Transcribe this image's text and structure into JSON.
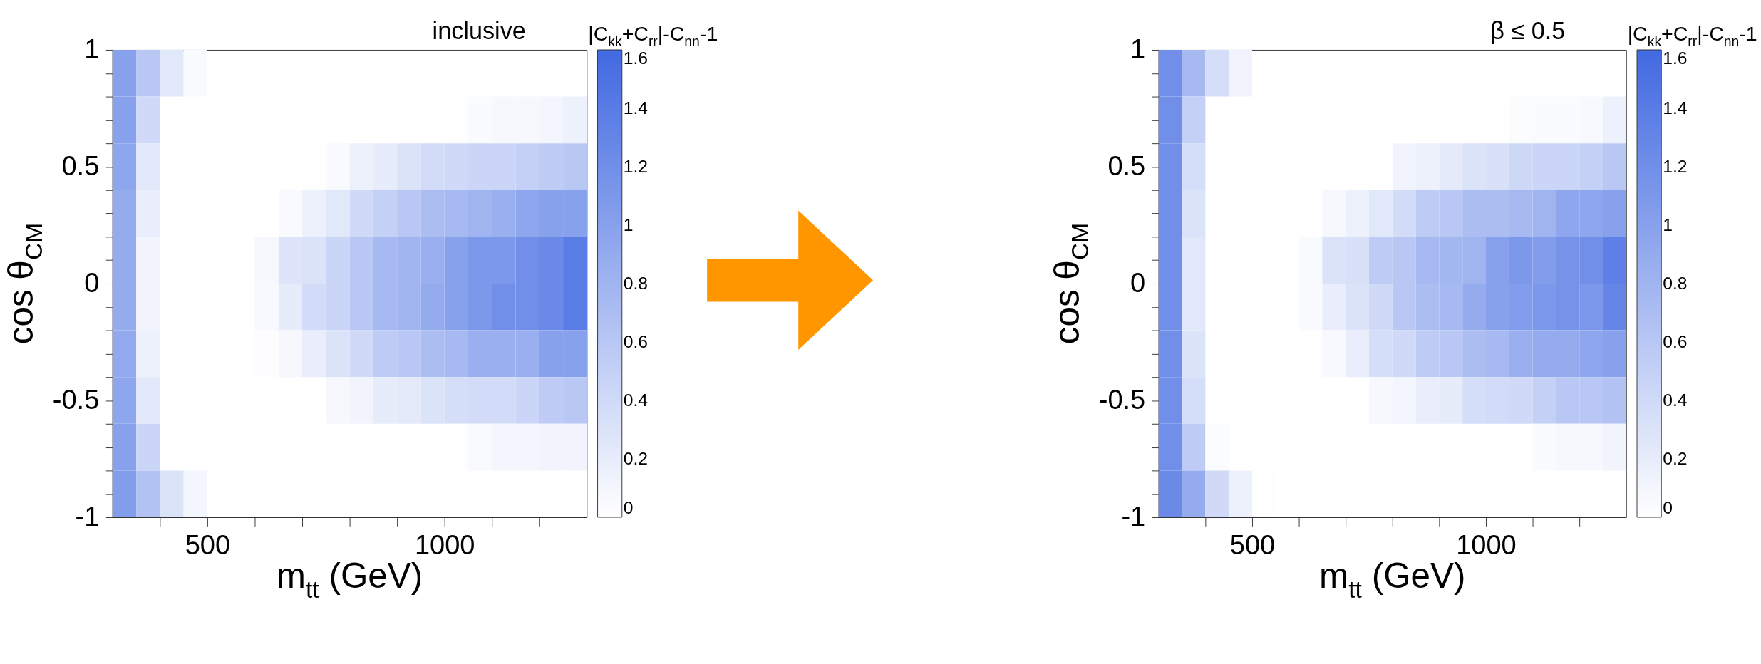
{
  "chart_data": [
    {
      "type": "heatmap",
      "title": "inclusive",
      "xlabel": "m$_{tt}$ (GeV)",
      "ylabel": "cos θ$_{CM}$",
      "clabel": "|C$_{kk}$+C$_{rr}$|-C$_{nn}$-1",
      "xlim": [
        300,
        1300
      ],
      "ylim": [
        -1,
        1
      ],
      "xticks": [
        {
          "value": 400,
          "label": null
        },
        500,
        {
          "value": 600,
          "label": null
        },
        {
          "value": 700,
          "label": null
        },
        {
          "value": 800,
          "label": null
        },
        {
          "value": 900,
          "label": null
        },
        1000,
        {
          "value": 1100,
          "label": null
        },
        {
          "value": 1200,
          "label": null
        }
      ],
      "yticks": [
        -1,
        {
          "value": -0.9,
          "label": null
        },
        {
          "value": -0.8,
          "label": null
        },
        {
          "value": -0.7,
          "label": null
        },
        {
          "value": -0.6,
          "label": null
        },
        -0.5,
        {
          "value": -0.4,
          "label": null
        },
        {
          "value": -0.3,
          "label": null
        },
        {
          "value": -0.2,
          "label": null
        },
        {
          "value": -0.1,
          "label": null
        },
        0,
        {
          "value": 0.1,
          "label": null
        },
        {
          "value": 0.2,
          "label": null
        },
        {
          "value": 0.3,
          "label": null
        },
        {
          "value": 0.4,
          "label": null
        },
        0.5,
        {
          "value": 0.6,
          "label": null
        },
        {
          "value": 0.7,
          "label": null
        },
        {
          "value": 0.8,
          "label": null
        },
        {
          "value": 0.9,
          "label": null
        },
        1
      ],
      "clim": [
        0,
        1.6
      ],
      "cticks": [
        0,
        0.2,
        0.4,
        0.6,
        0.8,
        1,
        1.2,
        1.4,
        1.6
      ],
      "colors": [
        "#ffffff",
        "#4169e1"
      ],
      "cells": [
        [
          1.0,
          0.6,
          0.25,
          0.05,
          null,
          null,
          null,
          null,
          null,
          null,
          null,
          null,
          null,
          null,
          null,
          null,
          null,
          null,
          null,
          null
        ],
        [
          1.0,
          0.4,
          null,
          null,
          null,
          null,
          null,
          null,
          null,
          null,
          null,
          null,
          null,
          null,
          0.01,
          0.04,
          0.08,
          0.08,
          0.1,
          0.15
        ],
        [
          0.95,
          0.25,
          null,
          null,
          null,
          null,
          null,
          null,
          0.01,
          0.05,
          0.15,
          0.2,
          0.3,
          0.38,
          0.4,
          0.45,
          0.45,
          0.5,
          0.55,
          0.6
        ],
        [
          0.9,
          0.18,
          null,
          null,
          null,
          null,
          null,
          0.05,
          0.15,
          0.25,
          0.4,
          0.5,
          0.6,
          0.7,
          0.75,
          0.8,
          0.85,
          0.95,
          1.0,
          1.0
        ],
        [
          0.9,
          0.12,
          null,
          null,
          null,
          null,
          0.08,
          0.28,
          0.3,
          0.45,
          0.6,
          0.75,
          0.8,
          0.85,
          1.0,
          1.1,
          1.1,
          1.2,
          1.25,
          1.4
        ],
        [
          0.9,
          0.12,
          null,
          null,
          null,
          null,
          0.06,
          0.2,
          0.38,
          0.45,
          0.6,
          0.75,
          0.8,
          0.9,
          1.0,
          1.1,
          1.2,
          1.2,
          1.25,
          1.4
        ],
        [
          0.92,
          0.15,
          null,
          null,
          null,
          null,
          0.02,
          0.08,
          0.18,
          0.3,
          0.4,
          0.55,
          0.6,
          0.7,
          0.75,
          0.85,
          0.85,
          0.85,
          1.0,
          1.0
        ],
        [
          0.95,
          0.25,
          null,
          null,
          null,
          null,
          null,
          null,
          null,
          0.08,
          0.12,
          0.2,
          0.22,
          0.3,
          0.35,
          0.38,
          0.38,
          0.45,
          0.55,
          0.6
        ],
        [
          1.0,
          0.45,
          null,
          null,
          null,
          null,
          null,
          null,
          null,
          null,
          null,
          null,
          null,
          null,
          0.01,
          0.05,
          0.1,
          0.1,
          0.12,
          0.12
        ],
        [
          1.05,
          0.65,
          0.3,
          0.1,
          null,
          null,
          null,
          null,
          null,
          null,
          null,
          null,
          null,
          null,
          null,
          null,
          null,
          null,
          null,
          null
        ]
      ]
    },
    {
      "type": "heatmap",
      "title": "β ≤ 0.5",
      "xlabel": "m$_{tt}$ (GeV)",
      "ylabel": "cos θ$_{CM}$",
      "clabel": "|C$_{kk}$+C$_{rr}$|-C$_{nn}$-1",
      "xlim": [
        300,
        1300
      ],
      "ylim": [
        -1,
        1
      ],
      "xticks": [
        {
          "value": 400,
          "label": null
        },
        500,
        {
          "value": 600,
          "label": null
        },
        {
          "value": 700,
          "label": null
        },
        {
          "value": 800,
          "label": null
        },
        {
          "value": 900,
          "label": null
        },
        1000,
        {
          "value": 1100,
          "label": null
        },
        {
          "value": 1200,
          "label": null
        }
      ],
      "yticks": [
        -1,
        {
          "value": -0.9,
          "label": null
        },
        {
          "value": -0.8,
          "label": null
        },
        {
          "value": -0.7,
          "label": null
        },
        {
          "value": -0.6,
          "label": null
        },
        -0.5,
        {
          "value": -0.4,
          "label": null
        },
        {
          "value": -0.3,
          "label": null
        },
        {
          "value": -0.2,
          "label": null
        },
        {
          "value": -0.1,
          "label": null
        },
        0,
        {
          "value": 0.1,
          "label": null
        },
        {
          "value": 0.2,
          "label": null
        },
        {
          "value": 0.3,
          "label": null
        },
        {
          "value": 0.4,
          "label": null
        },
        0.5,
        {
          "value": 0.6,
          "label": null
        },
        {
          "value": 0.7,
          "label": null
        },
        {
          "value": 0.8,
          "label": null
        },
        {
          "value": 0.9,
          "label": null
        },
        1
      ],
      "clim": [
        0,
        1.6
      ],
      "cticks": [
        0,
        0.2,
        0.4,
        0.6,
        0.8,
        1,
        1.2,
        1.4,
        1.6
      ],
      "colors": [
        "#ffffff",
        "#4169e1"
      ],
      "cells": [
        [
          1.2,
          0.75,
          0.35,
          0.12,
          null,
          null,
          null,
          null,
          null,
          null,
          null,
          null,
          null,
          null,
          null,
          null,
          null,
          null,
          null,
          null
        ],
        [
          1.2,
          0.5,
          null,
          null,
          null,
          null,
          null,
          null,
          null,
          null,
          null,
          null,
          null,
          null,
          null,
          0.03,
          0.04,
          0.04,
          0.06,
          0.15
        ],
        [
          1.2,
          0.35,
          null,
          null,
          null,
          null,
          null,
          null,
          null,
          null,
          0.12,
          0.15,
          0.22,
          0.3,
          0.32,
          0.42,
          0.45,
          0.45,
          0.5,
          0.6
        ],
        [
          1.2,
          0.3,
          null,
          null,
          null,
          null,
          null,
          0.08,
          0.15,
          0.25,
          0.38,
          0.55,
          0.6,
          0.7,
          0.7,
          0.75,
          0.8,
          0.95,
          0.95,
          1.0
        ],
        [
          1.2,
          0.25,
          null,
          null,
          null,
          null,
          0.05,
          0.3,
          0.32,
          0.55,
          0.6,
          0.75,
          0.78,
          0.8,
          1.0,
          1.1,
          1.05,
          1.15,
          1.2,
          1.35
        ],
        [
          1.2,
          0.25,
          null,
          null,
          null,
          null,
          0.04,
          0.18,
          0.3,
          0.4,
          0.6,
          0.7,
          0.75,
          0.9,
          1.0,
          1.05,
          1.1,
          1.15,
          1.1,
          1.3
        ],
        [
          1.2,
          0.3,
          null,
          null,
          null,
          null,
          null,
          0.06,
          0.18,
          0.35,
          0.4,
          0.55,
          0.6,
          0.7,
          0.75,
          0.85,
          0.9,
          0.9,
          0.95,
          1.0
        ],
        [
          1.2,
          0.35,
          null,
          null,
          null,
          null,
          null,
          null,
          null,
          0.08,
          0.1,
          0.18,
          0.2,
          0.35,
          0.38,
          0.4,
          0.5,
          0.6,
          0.6,
          0.65
        ],
        [
          1.2,
          0.55,
          0.03,
          null,
          null,
          null,
          null,
          null,
          null,
          null,
          null,
          null,
          null,
          null,
          null,
          null,
          0.04,
          0.08,
          0.07,
          0.12
        ],
        [
          1.25,
          0.9,
          0.4,
          0.15,
          0.01,
          null,
          null,
          null,
          null,
          null,
          null,
          null,
          null,
          null,
          null,
          null,
          null,
          null,
          null,
          null
        ]
      ]
    }
  ]
}
